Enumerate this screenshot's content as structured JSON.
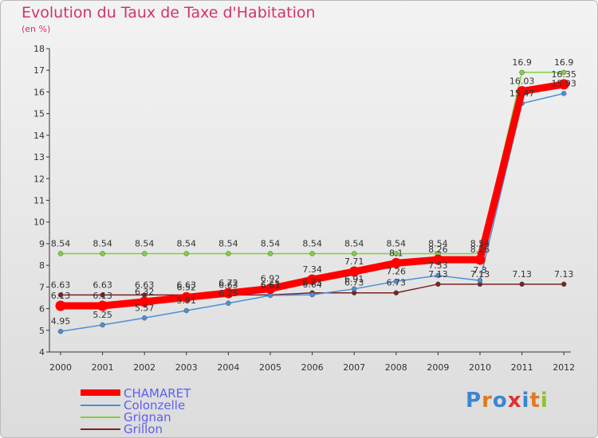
{
  "title": "Evolution du Taux de Taxe d'Habitation",
  "unit_label": "(en %)",
  "logo_text": "Proxiti",
  "chart_data": {
    "type": "line",
    "title": "Evolution du Taux de Taxe d'Habitation",
    "ylabel": "(en %)",
    "xlabel": "",
    "x": [
      "2000",
      "2001",
      "2002",
      "2003",
      "2004",
      "2005",
      "2006",
      "2007",
      "2008",
      "2009",
      "2010",
      "2011",
      "2012"
    ],
    "ylim": [
      4,
      18
    ],
    "yticks": [
      4,
      5,
      6,
      7,
      8,
      9,
      10,
      11,
      12,
      13,
      14,
      15,
      16,
      17,
      18
    ],
    "grid": false,
    "legend_position": "bottom-left",
    "series": [
      {
        "name": "CHAMARET",
        "color": "#ff0000",
        "values": [
          6.13,
          6.13,
          6.32,
          6.52,
          6.72,
          6.92,
          7.34,
          7.71,
          8.1,
          8.26,
          8.26,
          16.03,
          16.35
        ]
      },
      {
        "name": "Colonzelle",
        "color": "#4a8fd6",
        "values": [
          4.95,
          5.25,
          5.57,
          5.91,
          6.25,
          6.61,
          6.64,
          6.91,
          7.26,
          7.53,
          7.3,
          15.47,
          15.93
        ]
      },
      {
        "name": "Grignan",
        "color": "#80d040",
        "values": [
          8.54,
          8.54,
          8.54,
          8.54,
          8.54,
          8.54,
          8.54,
          8.54,
          8.54,
          8.54,
          8.54,
          16.9,
          16.9
        ]
      },
      {
        "name": "Grillon",
        "color": "#7a2222",
        "values": [
          6.63,
          6.63,
          6.63,
          6.63,
          6.63,
          6.63,
          6.73,
          6.73,
          6.73,
          7.13,
          7.13,
          7.13,
          7.13
        ]
      }
    ],
    "data_labels": {
      "CHAMARET": [
        "6.13",
        "6.13",
        "6.32",
        "6.52",
        "6.72",
        "6.92",
        "7.34",
        "7.71",
        "8.1",
        "8.26",
        "8.26",
        "16.03",
        "16.35"
      ],
      "Colonzelle": [
        "4.95",
        "5.25",
        "5.57",
        "5.91",
        "6.25",
        "6.61",
        "6.64",
        "6.91",
        "7.26",
        "7.53",
        "7.3",
        "15.47",
        "15.93"
      ],
      "Grignan": [
        "8.54",
        "8.54",
        "8.54",
        "8.54",
        "8.54",
        "8.54",
        "8.54",
        "8.54",
        "8.54",
        "8.54",
        "8.54",
        "16.9",
        "16.9"
      ],
      "Grillon": [
        "6.63",
        "6.63",
        "6.63",
        "6.63",
        "6.63",
        "6.63",
        "6.73",
        "6.73",
        "6.73",
        "7.13",
        "7.13",
        "7.13",
        "7.13"
      ]
    }
  },
  "legend": [
    {
      "label": "CHAMARET"
    },
    {
      "label": "Colonzelle"
    },
    {
      "label": "Grignan"
    },
    {
      "label": "Grillon"
    }
  ]
}
